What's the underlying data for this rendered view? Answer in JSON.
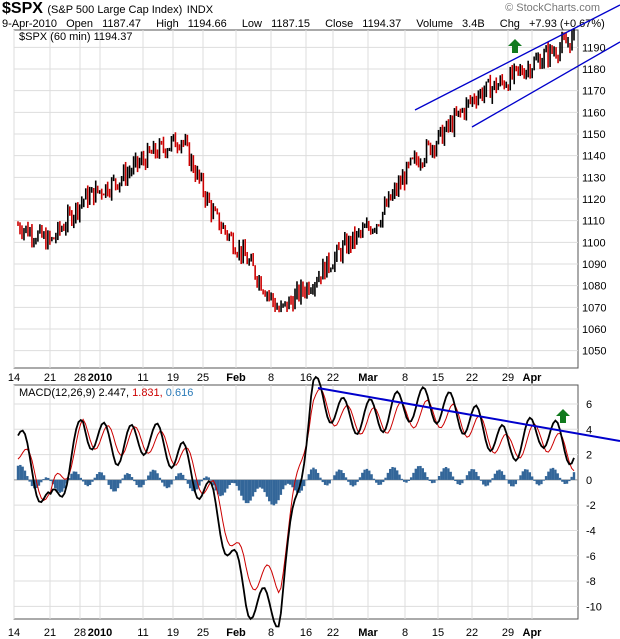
{
  "header": {
    "symbol": "$SPX",
    "name": "(S&P 500 Large Cap Index)",
    "exchange": "INDX",
    "date": "9-Apr-2010",
    "open_label": "Open",
    "open": "1187.47",
    "high_label": "High",
    "high": "1194.66",
    "low_label": "Low",
    "low": "1187.15",
    "close_label": "Close",
    "close": "1194.37",
    "volume_label": "Volume",
    "volume": "3.4B",
    "chg_label": "Chg",
    "chg": "+7.93 (+0.67%)",
    "brand": "© StockCharts.com"
  },
  "price_legend": "$SPX (60 min) 1194.37",
  "macd_legend": {
    "label": "MACD(12,26,9)",
    "macd": "2.447,",
    "signal": "1.831,",
    "hist": "0.616"
  },
  "colors": {
    "price_up": "#000000",
    "price_down": "#cc0000",
    "trendline": "#0000cc",
    "macd": "#000000",
    "signal": "#cc0000",
    "histogram": "#336699",
    "arrow": "#007700"
  },
  "x_ticks": [
    "14",
    "21",
    "28",
    "2010",
    "11",
    "19",
    "25",
    "Feb",
    "8",
    "16",
    "22",
    "Mar",
    "8",
    "15",
    "22",
    "29",
    "Apr"
  ],
  "x_ticks_bold": [
    "2010",
    "Feb",
    "Mar",
    "Apr"
  ],
  "chart_data": [
    {
      "type": "line",
      "title": "$SPX (60 min) 1194.37",
      "y_ticks": [
        1050,
        1060,
        1070,
        1080,
        1090,
        1100,
        1110,
        1120,
        1130,
        1140,
        1150,
        1160,
        1170,
        1180,
        1190
      ],
      "ylim": [
        1042,
        1198
      ],
      "x": [
        "14-Dec",
        "21-Dec",
        "28-Dec",
        "4-Jan",
        "11-Jan",
        "19-Jan",
        "25-Jan",
        "1-Feb",
        "8-Feb",
        "16-Feb",
        "22-Feb",
        "1-Mar",
        "8-Mar",
        "15-Mar",
        "22-Mar",
        "29-Mar",
        "5-Apr",
        "9-Apr"
      ],
      "series": [
        {
          "values": [
            1108,
            1100,
            1120,
            1128,
            1140,
            1148,
            1112,
            1092,
            1068,
            1082,
            1098,
            1110,
            1135,
            1150,
            1168,
            1175,
            1185,
            1194
          ]
        }
      ],
      "annotations": [
        "upward channel trendlines",
        "green up arrow"
      ]
    },
    {
      "type": "line",
      "title": "MACD(12,26,9) 2.447, 1.831, 0.616",
      "y_ticks": [
        -10,
        -8,
        -6,
        -4,
        -2,
        0,
        2,
        4,
        6
      ],
      "ylim": [
        -11,
        7.5
      ],
      "series": [
        {
          "name": "MACD",
          "values": [
            3.5,
            -2.5,
            4.2,
            2.5,
            3.5,
            1.8,
            -2,
            -9.5,
            -10.3,
            7,
            5,
            5,
            6,
            5.8,
            4.5,
            2.6,
            4,
            2.4
          ]
        },
        {
          "name": "Signal",
          "values": [
            2.5,
            -1.5,
            3.8,
            3,
            3.2,
            2,
            -1.2,
            -7.5,
            -8,
            6.5,
            4.8,
            4.6,
            5.2,
            5.2,
            4.2,
            2.4,
            3.6,
            1.8
          ]
        },
        {
          "name": "Histogram",
          "values": [
            1,
            -1,
            0.4,
            -0.5,
            0.3,
            -0.2,
            -0.8,
            -2,
            -2.3,
            2,
            0.5,
            0.4,
            0.8,
            0.6,
            0.3,
            0.2,
            0.4,
            0.6
          ]
        }
      ],
      "annotations": [
        "declining trendline on MACD peaks",
        "green up arrow"
      ]
    }
  ]
}
